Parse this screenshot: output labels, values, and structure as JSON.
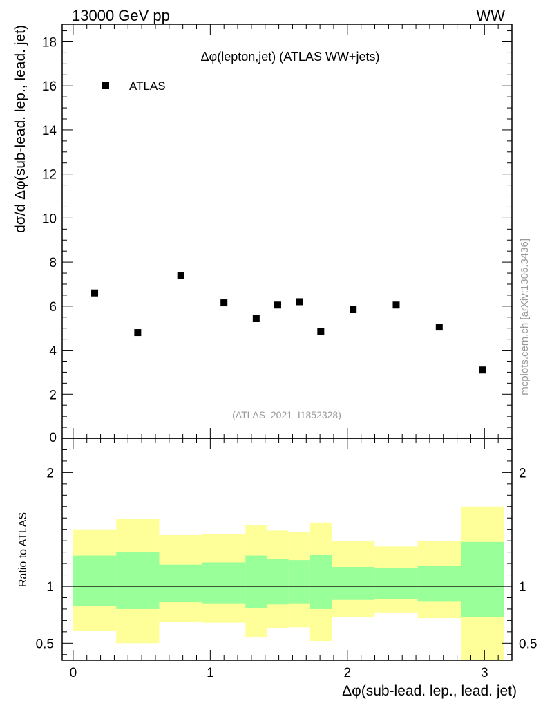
{
  "header": {
    "left": "13000 GeV pp",
    "right": "WW"
  },
  "side_label": "mcplots.cern.ch [arXiv:1306.3436]",
  "colors": {
    "stat_band": "#99ff99",
    "total_band": "#ffff99",
    "marker": "#000000",
    "axis": "#000000",
    "watermark": "#999999"
  },
  "chart_data": {
    "type": "scatter",
    "title": "Δφ(lepton,jet) (ATLAS WW+jets)",
    "analysis_id": "(ATLAS_2021_I1852328)",
    "xlabel": "Δφ(sub-lead. lep., lead. jet)",
    "ylabel": "dσ/d Δφ(sub-lead. lep., lead. jet)",
    "xlim": [
      -0.08,
      3.2
    ],
    "ylim": [
      0,
      18.8
    ],
    "x_ticks": [
      0,
      1,
      2,
      3
    ],
    "x_tick_labels": [
      "0",
      "1",
      "2",
      "3"
    ],
    "y_ticks": [
      2,
      4,
      6,
      8,
      10,
      12,
      14,
      16,
      18
    ],
    "y_tick_labels": [
      "2",
      "4",
      "6",
      "8",
      "10",
      "12",
      "14",
      "16",
      "18"
    ],
    "y_zero_label": "0",
    "legend": {
      "label": "ATLAS",
      "position": "top-left"
    },
    "series": [
      {
        "name": "ATLAS",
        "x": [
          0.157,
          0.471,
          0.785,
          1.1,
          1.335,
          1.492,
          1.649,
          1.806,
          2.042,
          2.356,
          2.67,
          2.985
        ],
        "values": [
          6.6,
          4.8,
          7.4,
          6.15,
          5.45,
          6.05,
          6.2,
          4.85,
          5.85,
          6.05,
          5.05,
          3.1
        ]
      }
    ],
    "ratio": {
      "ylabel": "Ratio to ATLAS",
      "ylim": [
        0.35,
        2.3
      ],
      "ticks": [
        0.5,
        1,
        2
      ],
      "tick_labels": [
        "0.5",
        "1",
        "2"
      ],
      "reference": 1,
      "bins": [
        {
          "lo": 0.0,
          "hi": 0.314,
          "stat": [
            0.83,
            1.27
          ],
          "total": [
            0.61,
            1.5
          ]
        },
        {
          "lo": 0.314,
          "hi": 0.628,
          "stat": [
            0.8,
            1.3
          ],
          "total": [
            0.5,
            1.59
          ]
        },
        {
          "lo": 0.628,
          "hi": 0.942,
          "stat": [
            0.86,
            1.19
          ],
          "total": [
            0.69,
            1.45
          ]
        },
        {
          "lo": 0.942,
          "hi": 1.257,
          "stat": [
            0.85,
            1.21
          ],
          "total": [
            0.68,
            1.46
          ]
        },
        {
          "lo": 1.257,
          "hi": 1.414,
          "stat": [
            0.81,
            1.27
          ],
          "total": [
            0.55,
            1.54
          ]
        },
        {
          "lo": 1.414,
          "hi": 1.571,
          "stat": [
            0.84,
            1.24
          ],
          "total": [
            0.63,
            1.49
          ]
        },
        {
          "lo": 1.571,
          "hi": 1.728,
          "stat": [
            0.85,
            1.23
          ],
          "total": [
            0.64,
            1.48
          ]
        },
        {
          "lo": 1.728,
          "hi": 1.885,
          "stat": [
            0.8,
            1.28
          ],
          "total": [
            0.52,
            1.56
          ]
        },
        {
          "lo": 1.885,
          "hi": 2.199,
          "stat": [
            0.88,
            1.17
          ],
          "total": [
            0.73,
            1.4
          ]
        },
        {
          "lo": 2.199,
          "hi": 2.513,
          "stat": [
            0.89,
            1.16
          ],
          "total": [
            0.77,
            1.35
          ]
        },
        {
          "lo": 2.513,
          "hi": 2.827,
          "stat": [
            0.87,
            1.18
          ],
          "total": [
            0.72,
            1.4
          ]
        },
        {
          "lo": 2.827,
          "hi": 3.142,
          "stat": [
            0.73,
            1.39
          ],
          "total": [
            0.35,
            1.7
          ]
        }
      ]
    }
  }
}
